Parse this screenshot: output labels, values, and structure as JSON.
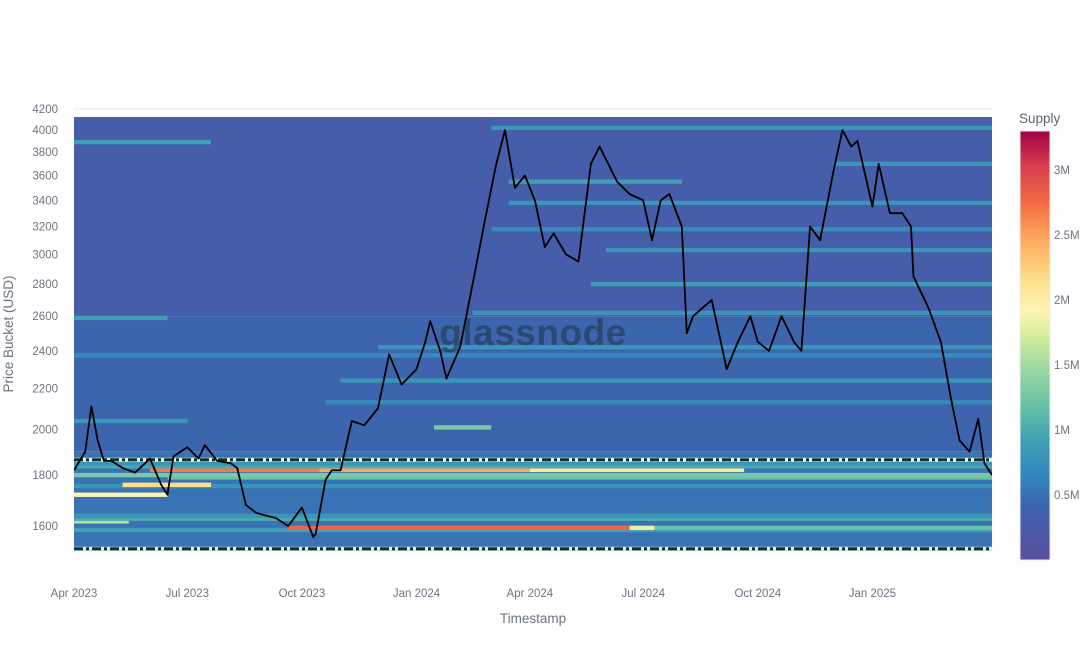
{
  "watermark": "glassnode",
  "colors": {
    "scale": [
      "#5b4f9f",
      "#3e62ad",
      "#3288bd",
      "#41a0b5",
      "#66c2a5",
      "#99d5a4",
      "#d2ec9c",
      "#fff5b5",
      "#fee08b",
      "#fdae61",
      "#f46d43",
      "#d53e4f",
      "#9e0142"
    ],
    "price_line": "#000000",
    "support_line": "#0f2f33",
    "support_highlight": "#e8f5cf"
  },
  "chart_data": {
    "type": "heatmap",
    "title": "",
    "xlabel": "Timestamp",
    "ylabel": "Price Bucket (USD)",
    "y_scale": "log",
    "ylim": [
      1510,
      4200
    ],
    "xlim": [
      "2023-04-01",
      "2025-04-07"
    ],
    "grid": true,
    "x_ticks": [
      {
        "date": "2023-04-01",
        "label": "Apr 2023"
      },
      {
        "date": "2023-07-01",
        "label": "Jul 2023"
      },
      {
        "date": "2023-10-01",
        "label": "Oct 2023"
      },
      {
        "date": "2024-01-01",
        "label": "Jan 2024"
      },
      {
        "date": "2024-04-01",
        "label": "Apr 2024"
      },
      {
        "date": "2024-07-01",
        "label": "Jul 2024"
      },
      {
        "date": "2024-10-01",
        "label": "Oct 2024"
      },
      {
        "date": "2025-01-01",
        "label": "Jan 2025"
      }
    ],
    "y_ticks": [
      {
        "value": 1600,
        "label": "1600"
      },
      {
        "value": 1800,
        "label": "1800"
      },
      {
        "value": 2000,
        "label": "2000"
      },
      {
        "value": 2200,
        "label": "2200"
      },
      {
        "value": 2400,
        "label": "2400"
      },
      {
        "value": 2600,
        "label": "2600"
      },
      {
        "value": 2800,
        "label": "2800"
      },
      {
        "value": 3000,
        "label": "3000"
      },
      {
        "value": 3200,
        "label": "3200"
      },
      {
        "value": 3400,
        "label": "3400"
      },
      {
        "value": 3600,
        "label": "3600"
      },
      {
        "value": 3800,
        "label": "3800"
      },
      {
        "value": 4000,
        "label": "4000"
      },
      {
        "value": 4200,
        "label": "4200"
      }
    ],
    "colorbar": {
      "title": "Supply",
      "min": 0,
      "max": 3300000,
      "ticks": [
        {
          "value": 500000,
          "label": "0.5M"
        },
        {
          "value": 1000000,
          "label": "1M"
        },
        {
          "value": 1500000,
          "label": "1.5M"
        },
        {
          "value": 2000000,
          "label": "2M"
        },
        {
          "value": 2500000,
          "label": "2.5M"
        },
        {
          "value": 3000000,
          "label": "3M"
        }
      ]
    },
    "background_supply": [
      {
        "from": 1500,
        "to": 1900,
        "supply": 400000
      },
      {
        "from": 1900,
        "to": 2600,
        "supply": 300000
      },
      {
        "from": 2600,
        "to": 4200,
        "supply": 200000
      }
    ],
    "supply_bands": [
      {
        "price": 1585,
        "start": "2023-04-01",
        "end": "2025-04-07",
        "supply": 800000
      },
      {
        "price": 1593,
        "start": "2023-09-20",
        "end": "2024-06-20",
        "supply": 2800000
      },
      {
        "price": 1593,
        "start": "2024-06-20",
        "end": "2024-07-10",
        "supply": 1800000
      },
      {
        "price": 1593,
        "start": "2024-07-10",
        "end": "2025-04-07",
        "supply": 1100000
      },
      {
        "price": 1617,
        "start": "2023-04-01",
        "end": "2023-05-15",
        "supply": 1500000
      },
      {
        "price": 1627,
        "start": "2023-04-01",
        "end": "2025-04-07",
        "supply": 900000
      },
      {
        "price": 1638,
        "start": "2023-04-01",
        "end": "2025-04-07",
        "supply": 700000
      },
      {
        "price": 1720,
        "start": "2023-04-01",
        "end": "2023-06-15",
        "supply": 1900000
      },
      {
        "price": 1755,
        "start": "2023-04-01",
        "end": "2025-04-07",
        "supply": 700000
      },
      {
        "price": 1760,
        "start": "2023-05-10",
        "end": "2023-07-20",
        "supply": 2200000
      },
      {
        "price": 1790,
        "start": "2023-06-15",
        "end": "2025-04-07",
        "supply": 1100000
      },
      {
        "price": 1800,
        "start": "2023-04-01",
        "end": "2025-04-07",
        "supply": 1200000
      },
      {
        "price": 1822,
        "start": "2023-06-01",
        "end": "2023-10-15",
        "supply": 2700000
      },
      {
        "price": 1822,
        "start": "2023-10-15",
        "end": "2024-04-01",
        "supply": 2500000
      },
      {
        "price": 1822,
        "start": "2024-04-01",
        "end": "2024-09-20",
        "supply": 2100000
      },
      {
        "price": 1837,
        "start": "2023-04-01",
        "end": "2025-04-07",
        "supply": 900000
      },
      {
        "price": 1849,
        "start": "2023-04-01",
        "end": "2025-04-07",
        "supply": 700000
      },
      {
        "price": 2040,
        "start": "2023-04-01",
        "end": "2023-07-01",
        "supply": 700000
      },
      {
        "price": 2010,
        "start": "2024-01-15",
        "end": "2024-03-01",
        "supply": 1200000
      },
      {
        "price": 2130,
        "start": "2023-10-20",
        "end": "2025-04-07",
        "supply": 600000
      },
      {
        "price": 2240,
        "start": "2023-11-01",
        "end": "2025-04-07",
        "supply": 700000
      },
      {
        "price": 2375,
        "start": "2023-04-01",
        "end": "2025-04-07",
        "supply": 600000
      },
      {
        "price": 2420,
        "start": "2023-12-01",
        "end": "2025-04-07",
        "supply": 700000
      },
      {
        "price": 2590,
        "start": "2023-04-01",
        "end": "2023-06-15",
        "supply": 800000
      },
      {
        "price": 2620,
        "start": "2024-02-15",
        "end": "2025-04-07",
        "supply": 700000
      },
      {
        "price": 2800,
        "start": "2024-05-20",
        "end": "2025-04-07",
        "supply": 800000
      },
      {
        "price": 3030,
        "start": "2024-06-01",
        "end": "2025-04-07",
        "supply": 700000
      },
      {
        "price": 3180,
        "start": "2024-03-01",
        "end": "2025-04-07",
        "supply": 600000
      },
      {
        "price": 3380,
        "start": "2024-03-15",
        "end": "2025-04-07",
        "supply": 700000
      },
      {
        "price": 3550,
        "start": "2024-03-15",
        "end": "2024-08-01",
        "supply": 800000
      },
      {
        "price": 3700,
        "start": "2024-12-01",
        "end": "2025-04-07",
        "supply": 700000
      },
      {
        "price": 3890,
        "start": "2023-04-01",
        "end": "2023-07-20",
        "supply": 800000
      },
      {
        "price": 4020,
        "start": "2024-03-01",
        "end": "2025-04-07",
        "supply": 700000
      }
    ],
    "support_levels": [
      {
        "price": 1865,
        "style": "dash-dot"
      },
      {
        "price": 1518,
        "style": "dash-dot"
      }
    ],
    "series": [
      {
        "type": "line",
        "x": [
          "2023-04-01",
          "2023-04-10",
          "2023-04-15",
          "2023-04-20",
          "2023-04-25",
          "2023-05-01",
          "2023-05-10",
          "2023-05-20",
          "2023-06-01",
          "2023-06-10",
          "2023-06-15",
          "2023-06-20",
          "2023-07-01",
          "2023-07-10",
          "2023-07-15",
          "2023-07-25",
          "2023-08-05",
          "2023-08-10",
          "2023-08-17",
          "2023-08-25",
          "2023-09-01",
          "2023-09-10",
          "2023-09-20",
          "2023-10-01",
          "2023-10-10",
          "2023-10-12",
          "2023-10-20",
          "2023-10-25",
          "2023-11-01",
          "2023-11-10",
          "2023-11-20",
          "2023-12-01",
          "2023-12-10",
          "2023-12-20",
          "2024-01-01",
          "2024-01-08",
          "2024-01-12",
          "2024-01-20",
          "2024-01-25",
          "2024-02-05",
          "2024-02-15",
          "2024-02-25",
          "2024-03-05",
          "2024-03-12",
          "2024-03-20",
          "2024-03-28",
          "2024-04-05",
          "2024-04-13",
          "2024-04-20",
          "2024-04-30",
          "2024-05-10",
          "2024-05-20",
          "2024-05-27",
          "2024-06-10",
          "2024-06-20",
          "2024-07-01",
          "2024-07-08",
          "2024-07-15",
          "2024-07-22",
          "2024-08-01",
          "2024-08-05",
          "2024-08-10",
          "2024-08-25",
          "2024-09-06",
          "2024-09-15",
          "2024-09-25",
          "2024-10-01",
          "2024-10-10",
          "2024-10-20",
          "2024-10-30",
          "2024-11-05",
          "2024-11-12",
          "2024-11-20",
          "2024-12-01",
          "2024-12-08",
          "2024-12-15",
          "2024-12-20",
          "2025-01-01",
          "2025-01-06",
          "2025-01-15",
          "2025-01-25",
          "2025-02-01",
          "2025-02-03",
          "2025-02-15",
          "2025-02-25",
          "2025-03-05",
          "2025-03-12",
          "2025-03-20",
          "2025-03-27",
          "2025-04-01",
          "2025-04-07"
        ],
        "y": [
          1820,
          1900,
          2110,
          1950,
          1860,
          1860,
          1830,
          1810,
          1870,
          1760,
          1720,
          1880,
          1920,
          1870,
          1930,
          1860,
          1850,
          1830,
          1680,
          1650,
          1640,
          1630,
          1600,
          1670,
          1560,
          1570,
          1780,
          1820,
          1820,
          2040,
          2020,
          2100,
          2380,
          2220,
          2300,
          2450,
          2570,
          2400,
          2250,
          2420,
          2800,
          3250,
          3700,
          4000,
          3500,
          3600,
          3400,
          3050,
          3150,
          3000,
          2950,
          3700,
          3850,
          3550,
          3450,
          3400,
          3100,
          3400,
          3450,
          3200,
          2500,
          2600,
          2700,
          2300,
          2450,
          2600,
          2450,
          2400,
          2600,
          2450,
          2400,
          3200,
          3100,
          3650,
          4000,
          3850,
          3900,
          3350,
          3700,
          3300,
          3300,
          3200,
          2850,
          2650,
          2450,
          2150,
          1950,
          1900,
          2050,
          1850,
          1800
        ]
      }
    ]
  }
}
